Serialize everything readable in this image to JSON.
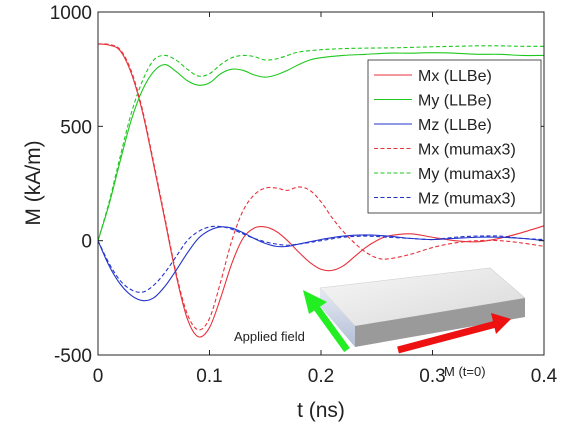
{
  "chart_data": {
    "type": "line",
    "title": "",
    "xlabel": "t (ns)",
    "ylabel": "M (kA/m)",
    "xlim": [
      0,
      0.4
    ],
    "ylim": [
      -500,
      1000
    ],
    "xticks": [
      0,
      0.1,
      0.2,
      0.3,
      0.4
    ],
    "xtick_labels": [
      "0",
      "0.1",
      "0.2",
      "0.3",
      "0.4"
    ],
    "yticks": [
      -500,
      0,
      500,
      1000
    ],
    "ytick_labels": [
      "-500",
      "0",
      "500",
      "1000"
    ],
    "grid": false,
    "legend_position": "top-right",
    "series": [
      {
        "name": "Mx (LLBe)",
        "color": "#e8323c",
        "dash": "solid",
        "x": [
          0,
          0.01,
          0.02,
          0.03,
          0.04,
          0.05,
          0.06,
          0.07,
          0.08,
          0.09,
          0.1,
          0.11,
          0.12,
          0.13,
          0.14,
          0.15,
          0.16,
          0.17,
          0.18,
          0.19,
          0.2,
          0.21,
          0.22,
          0.23,
          0.24,
          0.25,
          0.26,
          0.28,
          0.3,
          0.32,
          0.34,
          0.36,
          0.38,
          0.4
        ],
        "y": [
          860,
          855,
          830,
          730,
          560,
          330,
          90,
          -150,
          -340,
          -420,
          -380,
          -250,
          -100,
          10,
          55,
          60,
          40,
          0,
          -50,
          -95,
          -125,
          -130,
          -110,
          -70,
          -30,
          0,
          20,
          30,
          15,
          0,
          -5,
          10,
          35,
          65
        ]
      },
      {
        "name": "My (LLBe)",
        "color": "#1ec81e",
        "dash": "solid",
        "x": [
          0,
          0.01,
          0.02,
          0.03,
          0.04,
          0.05,
          0.06,
          0.07,
          0.08,
          0.09,
          0.1,
          0.11,
          0.12,
          0.13,
          0.14,
          0.15,
          0.16,
          0.17,
          0.18,
          0.19,
          0.2,
          0.22,
          0.24,
          0.26,
          0.28,
          0.3,
          0.32,
          0.34,
          0.36,
          0.38,
          0.4
        ],
        "y": [
          0,
          160,
          350,
          530,
          660,
          740,
          770,
          740,
          700,
          680,
          690,
          730,
          750,
          745,
          725,
          715,
          725,
          745,
          770,
          790,
          800,
          810,
          815,
          820,
          820,
          822,
          820,
          815,
          815,
          810,
          810
        ]
      },
      {
        "name": "Mz (LLBe)",
        "color": "#2233cc",
        "dash": "solid",
        "x": [
          0,
          0.01,
          0.02,
          0.03,
          0.04,
          0.05,
          0.06,
          0.07,
          0.08,
          0.09,
          0.1,
          0.11,
          0.12,
          0.13,
          0.14,
          0.15,
          0.16,
          0.17,
          0.18,
          0.2,
          0.22,
          0.24,
          0.26,
          0.28,
          0.3,
          0.32,
          0.34,
          0.36,
          0.38,
          0.4
        ],
        "y": [
          0,
          -110,
          -190,
          -240,
          -262,
          -250,
          -200,
          -130,
          -55,
          10,
          45,
          60,
          55,
          35,
          10,
          -12,
          -25,
          -25,
          -15,
          5,
          20,
          25,
          20,
          10,
          5,
          10,
          15,
          15,
          10,
          0
        ]
      },
      {
        "name": "Mx (mumax3)",
        "color": "#e8323c",
        "dash": "dashed",
        "x": [
          0,
          0.01,
          0.02,
          0.03,
          0.04,
          0.05,
          0.06,
          0.07,
          0.08,
          0.09,
          0.1,
          0.11,
          0.12,
          0.13,
          0.14,
          0.15,
          0.16,
          0.17,
          0.18,
          0.19,
          0.2,
          0.21,
          0.22,
          0.23,
          0.24,
          0.25,
          0.26,
          0.28,
          0.3,
          0.32,
          0.34,
          0.36,
          0.38,
          0.4
        ],
        "y": [
          860,
          858,
          835,
          740,
          570,
          340,
          100,
          -140,
          -320,
          -390,
          -340,
          -180,
          0,
          130,
          200,
          230,
          230,
          220,
          235,
          220,
          170,
          100,
          40,
          -10,
          -50,
          -75,
          -80,
          -60,
          -30,
          -10,
          0,
          0,
          -10,
          -25
        ]
      },
      {
        "name": "My (mumax3)",
        "color": "#1ec81e",
        "dash": "dashed",
        "x": [
          0,
          0.01,
          0.02,
          0.03,
          0.04,
          0.05,
          0.06,
          0.07,
          0.08,
          0.09,
          0.1,
          0.11,
          0.12,
          0.13,
          0.14,
          0.15,
          0.16,
          0.17,
          0.18,
          0.2,
          0.22,
          0.24,
          0.26,
          0.28,
          0.3,
          0.32,
          0.34,
          0.36,
          0.38,
          0.4
        ],
        "y": [
          0,
          170,
          370,
          560,
          700,
          790,
          810,
          790,
          750,
          720,
          730,
          770,
          800,
          810,
          805,
          790,
          795,
          810,
          825,
          835,
          840,
          842,
          843,
          845,
          848,
          850,
          852,
          852,
          850,
          850
        ]
      },
      {
        "name": "Mz (mumax3)",
        "color": "#2233cc",
        "dash": "dashed",
        "x": [
          0,
          0.01,
          0.02,
          0.03,
          0.04,
          0.05,
          0.06,
          0.07,
          0.08,
          0.09,
          0.1,
          0.11,
          0.12,
          0.13,
          0.14,
          0.15,
          0.16,
          0.17,
          0.18,
          0.2,
          0.22,
          0.24,
          0.26,
          0.28,
          0.3,
          0.32,
          0.34,
          0.36,
          0.38,
          0.4
        ],
        "y": [
          0,
          -100,
          -175,
          -215,
          -225,
          -195,
          -140,
          -70,
          0,
          40,
          60,
          62,
          50,
          30,
          10,
          -5,
          -15,
          -20,
          -15,
          0,
          15,
          20,
          15,
          10,
          5,
          15,
          20,
          20,
          10,
          5
        ]
      }
    ],
    "annotations": [
      {
        "text": "Applied field",
        "color": "#22ee22",
        "arrow": "up-right"
      },
      {
        "text": "M (t=0)",
        "color": "#ee1111",
        "arrow": "right"
      }
    ]
  }
}
